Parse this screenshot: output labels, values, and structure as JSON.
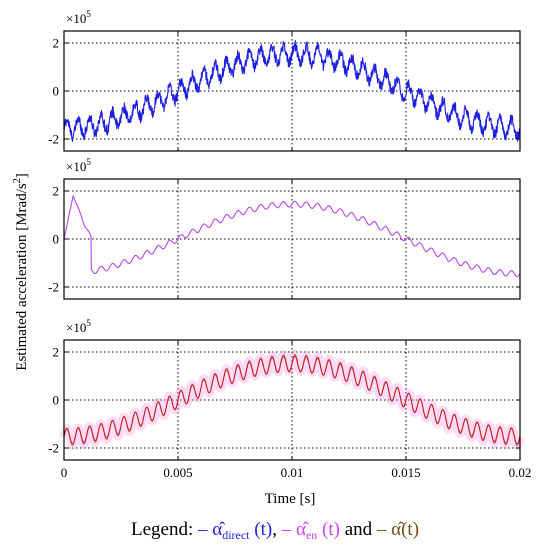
{
  "chart_data": [
    {
      "type": "line",
      "series": [
        {
          "name": "α̂_direct(t)",
          "color": "#1f1fe0",
          "model": {
            "amplitude": 1.55,
            "period": 0.01,
            "phase_peak": 0.01,
            "ripple_amp": 0.35,
            "ripple_freq": 2000,
            "noise": 0.45
          }
        }
      ],
      "xlim": [
        0,
        0.02
      ],
      "ylim": [
        -2.5,
        2.5
      ],
      "xticks": [
        0,
        0.005,
        0.01,
        0.015,
        0.02
      ],
      "yticks": [
        -2,
        0,
        2
      ],
      "ytick_labels": [
        "-2",
        "0",
        "2"
      ],
      "y_multiplier": "×10",
      "y_multiplier_exp": "5",
      "grid": true
    },
    {
      "type": "line",
      "series": [
        {
          "name": "α̂_en(t)",
          "color": "#b844ee",
          "model": {
            "amplitude": 1.45,
            "period": 0.01,
            "phase_peak": 0.01,
            "ripple_amp": 0.12,
            "ripple_freq": 2000,
            "startup_peak": 1.8
          }
        }
      ],
      "xlim": [
        0,
        0.02
      ],
      "ylim": [
        -2.5,
        2.5
      ],
      "xticks": [
        0,
        0.005,
        0.01,
        0.015,
        0.02
      ],
      "yticks": [
        -2,
        0,
        2
      ],
      "ytick_labels": [
        "-2",
        "0",
        "2"
      ],
      "y_multiplier": "×10",
      "y_multiplier_exp": "5",
      "grid": true
    },
    {
      "type": "line",
      "series": [
        {
          "name": "α̂(t)",
          "color": "#8a5a1c",
          "model": {
            "amplitude": 1.55,
            "period": 0.01,
            "phase_peak": 0.01,
            "ripple_amp": 0.35,
            "ripple_freq": 2000
          }
        },
        {
          "name": "band",
          "color": "#ff99ee",
          "model": {
            "amplitude": 1.55,
            "period": 0.01,
            "phase_peak": 0.01,
            "ripple_amp": 0.35,
            "ripple_freq": 2000
          }
        },
        {
          "name": "inner",
          "color": "#cc1111",
          "model": {
            "amplitude": 1.5,
            "period": 0.01,
            "phase_peak": 0.01,
            "ripple_amp": 0.33,
            "ripple_freq": 2000
          }
        }
      ],
      "xlim": [
        0,
        0.02
      ],
      "ylim": [
        -2.5,
        2.5
      ],
      "xticks": [
        0,
        0.005,
        0.01,
        0.015,
        0.02
      ],
      "yticks": [
        -2,
        0,
        2
      ],
      "ytick_labels": [
        "-2",
        "0",
        "2"
      ],
      "xtick_labels": [
        "0",
        "0.005",
        "0.01",
        "0.015",
        "0.02"
      ],
      "y_multiplier": "×10",
      "y_multiplier_exp": "5",
      "grid": true
    }
  ],
  "ylabel": "Estimated acceleration [Mrad/s",
  "ylabel_sup": "2",
  "ylabel_end": "]",
  "xlabel": "Time [s]",
  "legend": {
    "prefix": "Legend: ",
    "item1_dash": "– ",
    "item1_main": "α̂",
    "item1_sub": "direct",
    "item1_tail": " (t)",
    "sep1": ", ",
    "item2_dash": "– ",
    "item2_main": "α̂",
    "item2_sub": "en",
    "item2_tail": " (t)",
    "sep2": " and ",
    "item3_dash": "– ",
    "item3_main": "α̂(t)",
    "color1": "#1f1fe0",
    "color2": "#cc44ee",
    "color3": "#7a4a12"
  }
}
